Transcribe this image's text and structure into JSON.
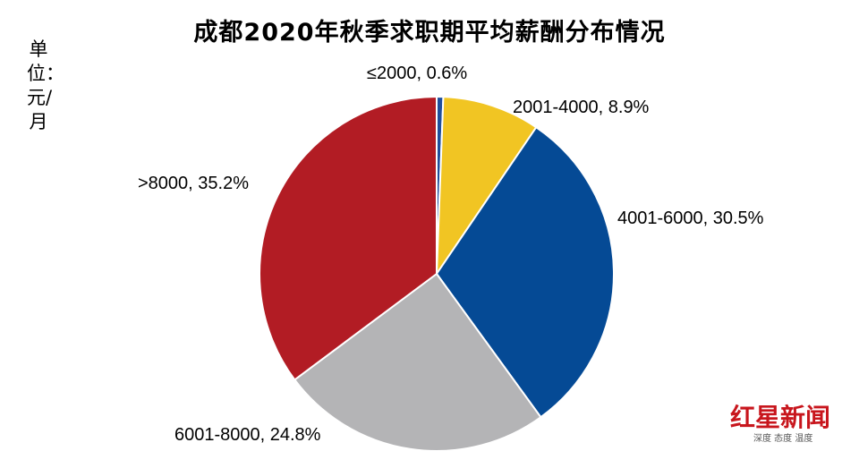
{
  "chart_data": {
    "type": "pie",
    "title": "成都2020年秋季求职期平均薪酬分布情况",
    "unit_label": "单位：元/月",
    "slices": [
      {
        "label": "≤2000, 0.6%",
        "category": "≤2000",
        "value": 0.6,
        "color": "#1f4e9c"
      },
      {
        "label": "2001-4000, 8.9%",
        "category": "2001-4000",
        "value": 8.9,
        "color": "#f1c523"
      },
      {
        "label": "4001-6000, 30.5%",
        "category": "4001-6000",
        "value": 30.5,
        "color": "#054a95"
      },
      {
        "label": "6001-8000, 24.8%",
        "category": "6001-8000",
        "value": 24.8,
        "color": "#b4b4b6"
      },
      {
        "label": ">8000, 35.2%",
        "category": ">8000",
        "value": 35.2,
        "color": "#b21c24"
      }
    ]
  },
  "watermark": {
    "logo_text": "红星新闻",
    "tagline": "深度 态度 温度"
  }
}
